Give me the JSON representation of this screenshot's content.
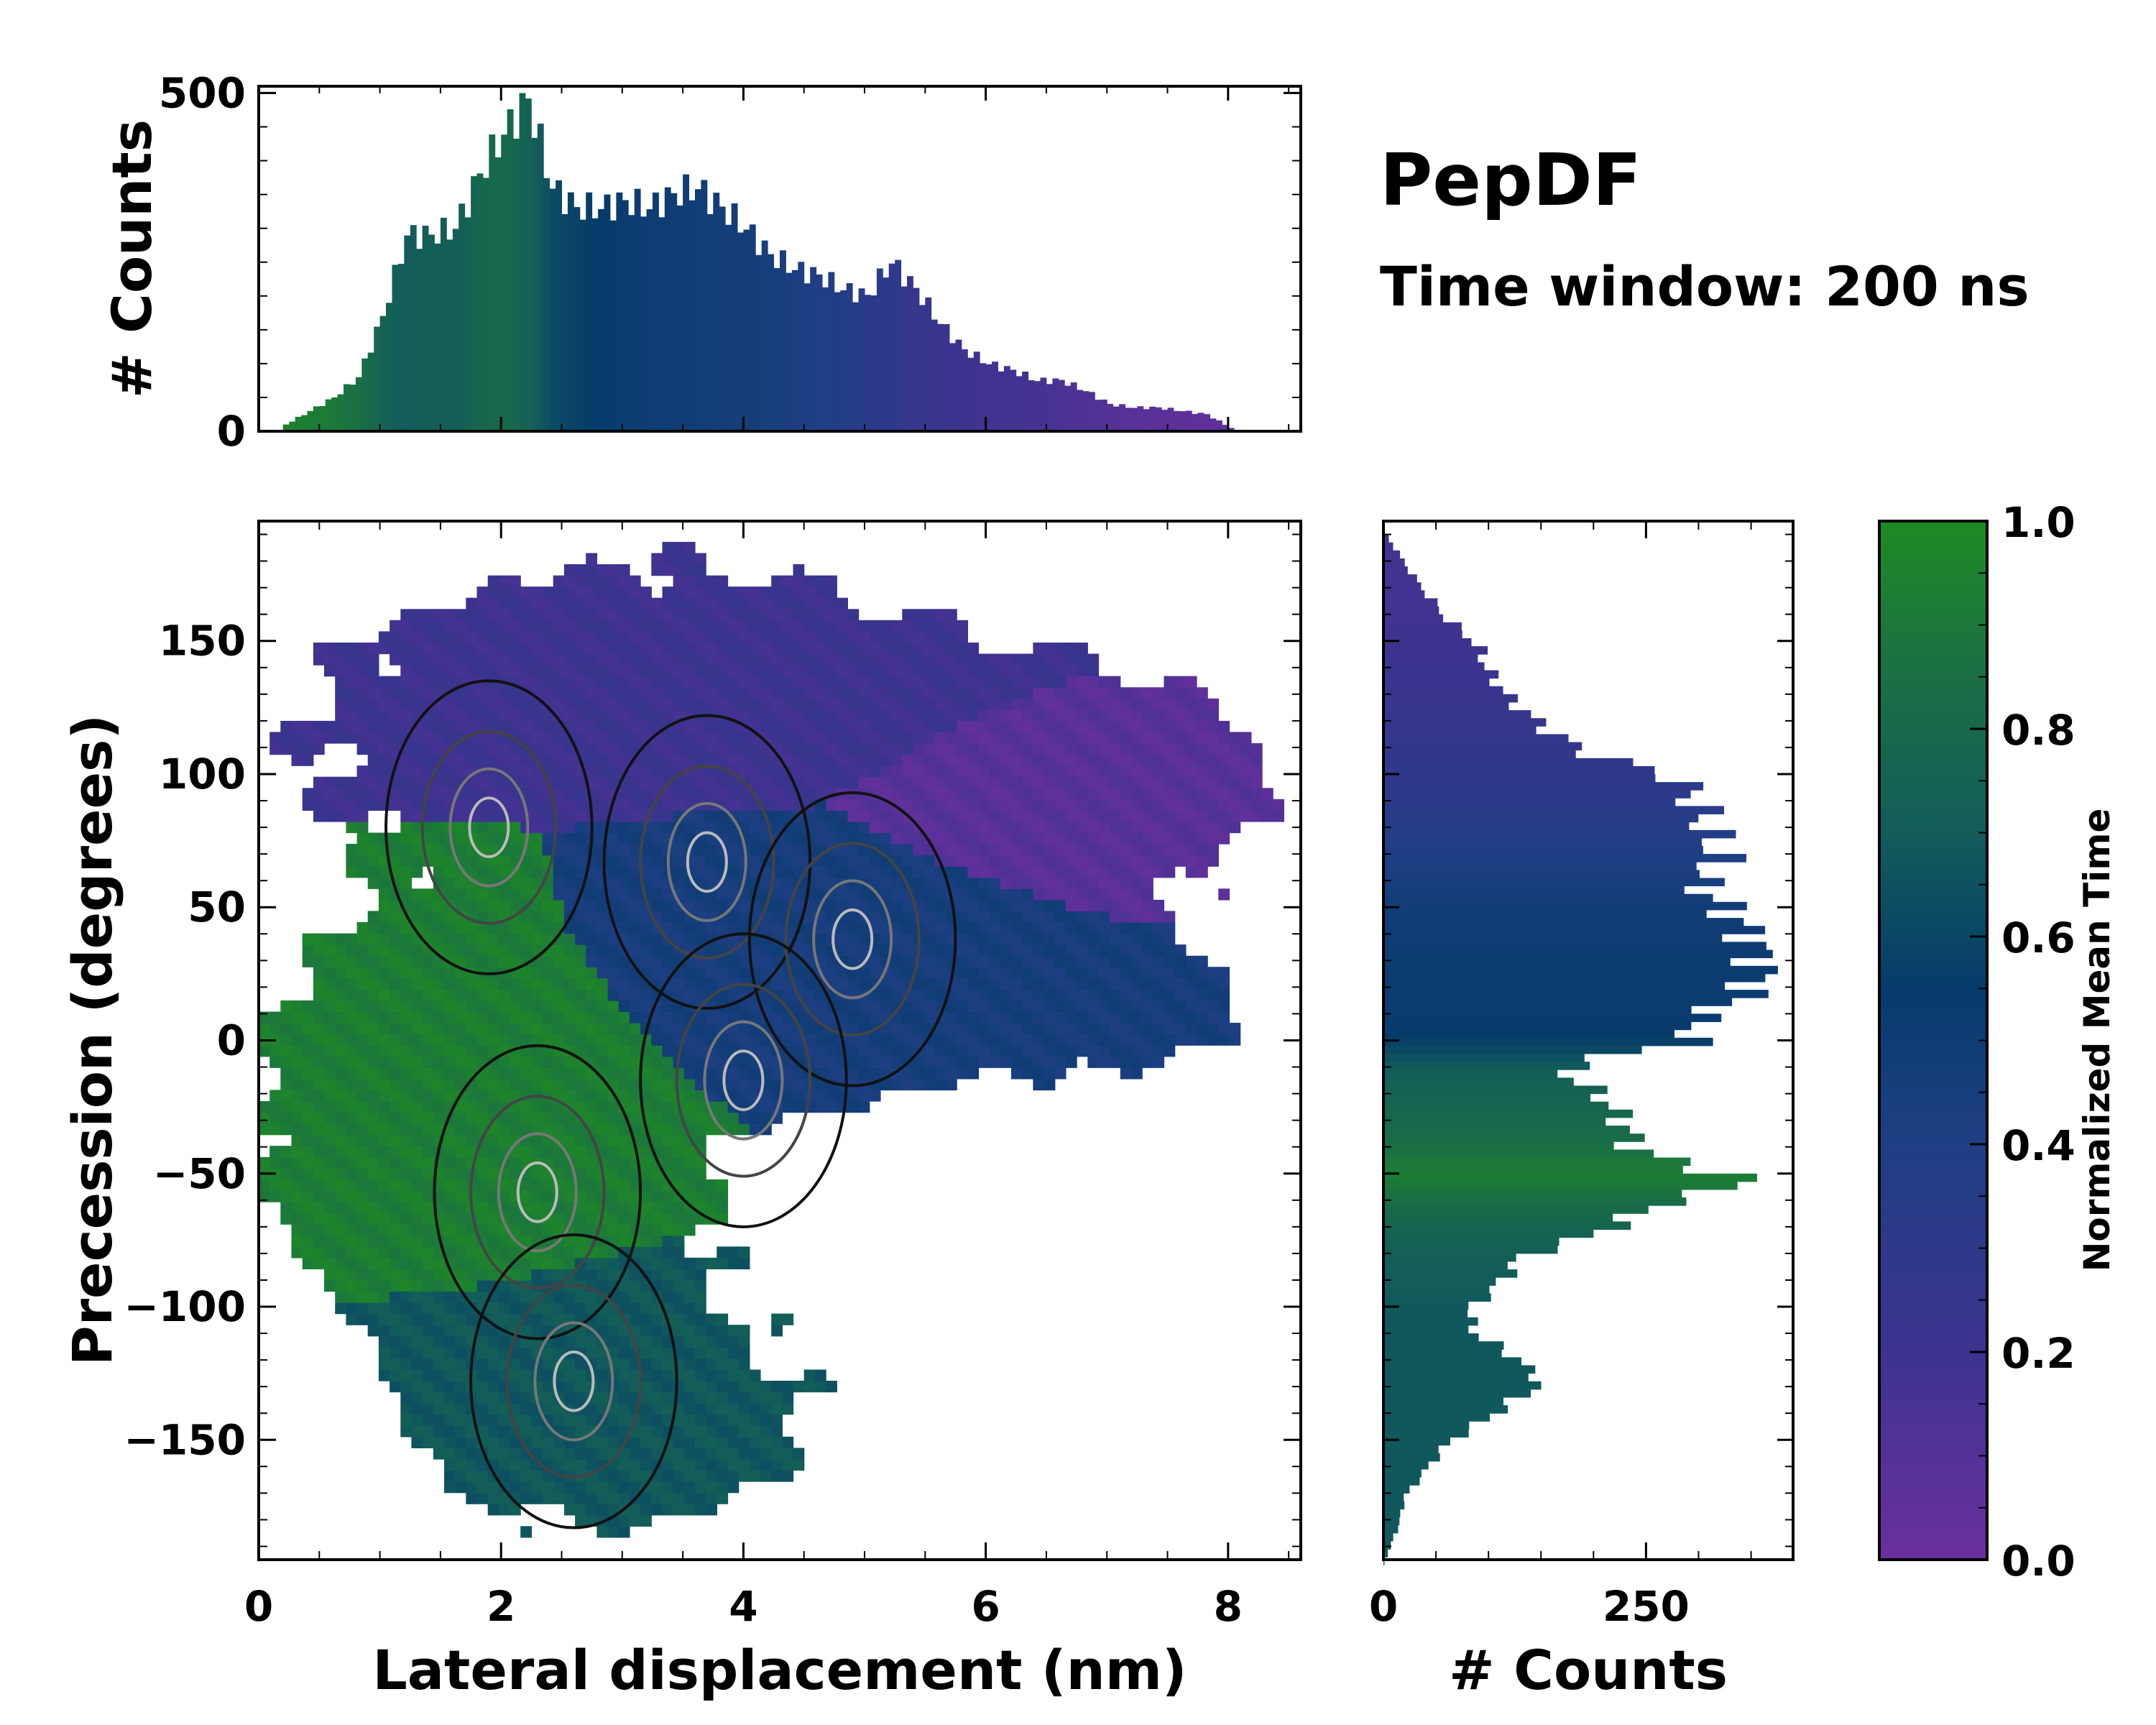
{
  "chart_data": [
    {
      "type": "heatmap",
      "panel": "joint",
      "title": "PepDF",
      "subtitle": "Time window: 200 ns",
      "xlabel": "Lateral displacement (nm)",
      "ylabel": "Precession (degrees)",
      "xlim": [
        0,
        8.6
      ],
      "ylim": [
        -195,
        195
      ],
      "xticks": [
        0,
        2,
        4,
        6,
        8
      ],
      "yticks": [
        -150,
        -100,
        -50,
        0,
        50,
        100,
        150
      ],
      "xtick_labels": [
        "0",
        "2",
        "4",
        "6",
        "8"
      ],
      "ytick_labels": [
        "−150",
        "−100",
        "−50",
        "0",
        "50",
        "100",
        "150"
      ],
      "color_value": "Normalized Mean Time",
      "density_peaks": [
        {
          "x": 3.7,
          "y": 67
        },
        {
          "x": 2.3,
          "y": -57
        },
        {
          "x": 1.9,
          "y": 80
        },
        {
          "x": 4.9,
          "y": 38
        },
        {
          "x": 4.0,
          "y": -15
        },
        {
          "x": 2.6,
          "y": -128
        }
      ],
      "regions": [
        {
          "x_range": [
            0.3,
            7.0
          ],
          "y_range": [
            95,
            180
          ],
          "mean_time": 0.2
        },
        {
          "x_range": [
            5.0,
            8.5
          ],
          "y_range": [
            40,
            140
          ],
          "mean_time": 0.08
        },
        {
          "x_range": [
            2.5,
            7.5
          ],
          "y_range": [
            -20,
            80
          ],
          "mean_time": 0.45
        },
        {
          "x_range": [
            0.0,
            3.5
          ],
          "y_range": [
            -100,
            50
          ],
          "mean_time": 0.93
        },
        {
          "x_range": [
            0.5,
            5.0
          ],
          "y_range": [
            -190,
            -80
          ],
          "mean_time": 0.68
        }
      ]
    },
    {
      "type": "bar",
      "panel": "top-marginal",
      "ylabel": "# Counts",
      "ylim": [
        0,
        510
      ],
      "yticks": [
        0,
        500
      ],
      "ytick_labels": [
        "0",
        "500"
      ],
      "x_start": 0.0,
      "bin_width": 0.05,
      "x": [
        0.2,
        0.4,
        0.6,
        0.8,
        1.0,
        1.2,
        1.4,
        1.6,
        1.8,
        2.0,
        2.2,
        2.4,
        2.6,
        2.8,
        3.0,
        3.2,
        3.4,
        3.6,
        3.8,
        4.0,
        4.2,
        4.4,
        4.6,
        4.8,
        5.0,
        5.2,
        5.4,
        5.6,
        5.8,
        6.0,
        6.2,
        6.4,
        6.6,
        6.8,
        7.0,
        7.2,
        7.4,
        7.6,
        7.8,
        8.0,
        8.05
      ],
      "values": [
        10,
        30,
        50,
        80,
        170,
        290,
        290,
        300,
        380,
        440,
        490,
        360,
        330,
        330,
        340,
        330,
        350,
        360,
        330,
        300,
        260,
        240,
        230,
        210,
        200,
        250,
        210,
        160,
        120,
        100,
        90,
        75,
        75,
        60,
        40,
        35,
        35,
        30,
        25,
        5,
        0
      ],
      "colors": [
        0.95,
        0.93,
        0.9,
        0.85,
        0.75,
        0.7,
        0.72,
        0.72,
        0.78,
        0.8,
        0.75,
        0.62,
        0.58,
        0.55,
        0.52,
        0.5,
        0.5,
        0.48,
        0.47,
        0.46,
        0.45,
        0.42,
        0.4,
        0.38,
        0.33,
        0.3,
        0.25,
        0.22,
        0.2,
        0.17,
        0.18,
        0.16,
        0.14,
        0.12,
        0.1,
        0.08,
        0.07,
        0.06,
        0.05,
        0.04,
        0.04
      ]
    },
    {
      "type": "bar",
      "panel": "right-marginal",
      "orientation": "horizontal",
      "xlabel": "# Counts",
      "xlim": [
        0,
        390
      ],
      "xticks": [
        0,
        250
      ],
      "xtick_labels": [
        "0",
        "250"
      ],
      "bin_width": 3,
      "y": [
        190,
        175,
        160,
        150,
        140,
        130,
        120,
        110,
        100,
        90,
        80,
        70,
        60,
        50,
        40,
        30,
        20,
        10,
        0,
        -5,
        -10,
        -20,
        -30,
        -40,
        -45,
        -50,
        -55,
        -60,
        -70,
        -80,
        -90,
        -100,
        -110,
        -115,
        -120,
        -125,
        -130,
        -140,
        -150,
        -160,
        -170,
        -180,
        -190,
        -195
      ],
      "values": [
        5,
        30,
        60,
        90,
        100,
        120,
        150,
        190,
        280,
        300,
        310,
        320,
        300,
        330,
        350,
        360,
        350,
        300,
        290,
        200,
        170,
        210,
        230,
        240,
        290,
        340,
        320,
        260,
        210,
        130,
        110,
        80,
        90,
        120,
        130,
        150,
        140,
        100,
        60,
        40,
        20,
        15,
        5,
        0
      ],
      "colors": [
        0.18,
        0.18,
        0.18,
        0.2,
        0.22,
        0.23,
        0.25,
        0.27,
        0.3,
        0.32,
        0.36,
        0.4,
        0.44,
        0.48,
        0.5,
        0.52,
        0.52,
        0.52,
        0.58,
        0.65,
        0.72,
        0.76,
        0.8,
        0.86,
        0.9,
        0.92,
        0.88,
        0.82,
        0.76,
        0.72,
        0.7,
        0.68,
        0.68,
        0.68,
        0.68,
        0.68,
        0.68,
        0.68,
        0.68,
        0.68,
        0.68,
        0.68,
        0.68,
        0.68
      ]
    },
    {
      "type": "colorbar",
      "label": "Normalized Mean Time",
      "range": [
        0.0,
        1.0
      ],
      "ticks": [
        0.0,
        0.2,
        0.4,
        0.6,
        0.8,
        1.0
      ],
      "tick_labels": [
        "0.0",
        "0.2",
        "0.4",
        "0.6",
        "0.8",
        "1.0"
      ],
      "colormap": [
        {
          "t": 0.0,
          "color": "#6a2f9e"
        },
        {
          "t": 0.2,
          "color": "#3d338f"
        },
        {
          "t": 0.4,
          "color": "#1f3f84"
        },
        {
          "t": 0.55,
          "color": "#063b6b"
        },
        {
          "t": 0.7,
          "color": "#125c5a"
        },
        {
          "t": 0.85,
          "color": "#1a6f45"
        },
        {
          "t": 1.0,
          "color": "#1f8a24"
        }
      ]
    }
  ]
}
